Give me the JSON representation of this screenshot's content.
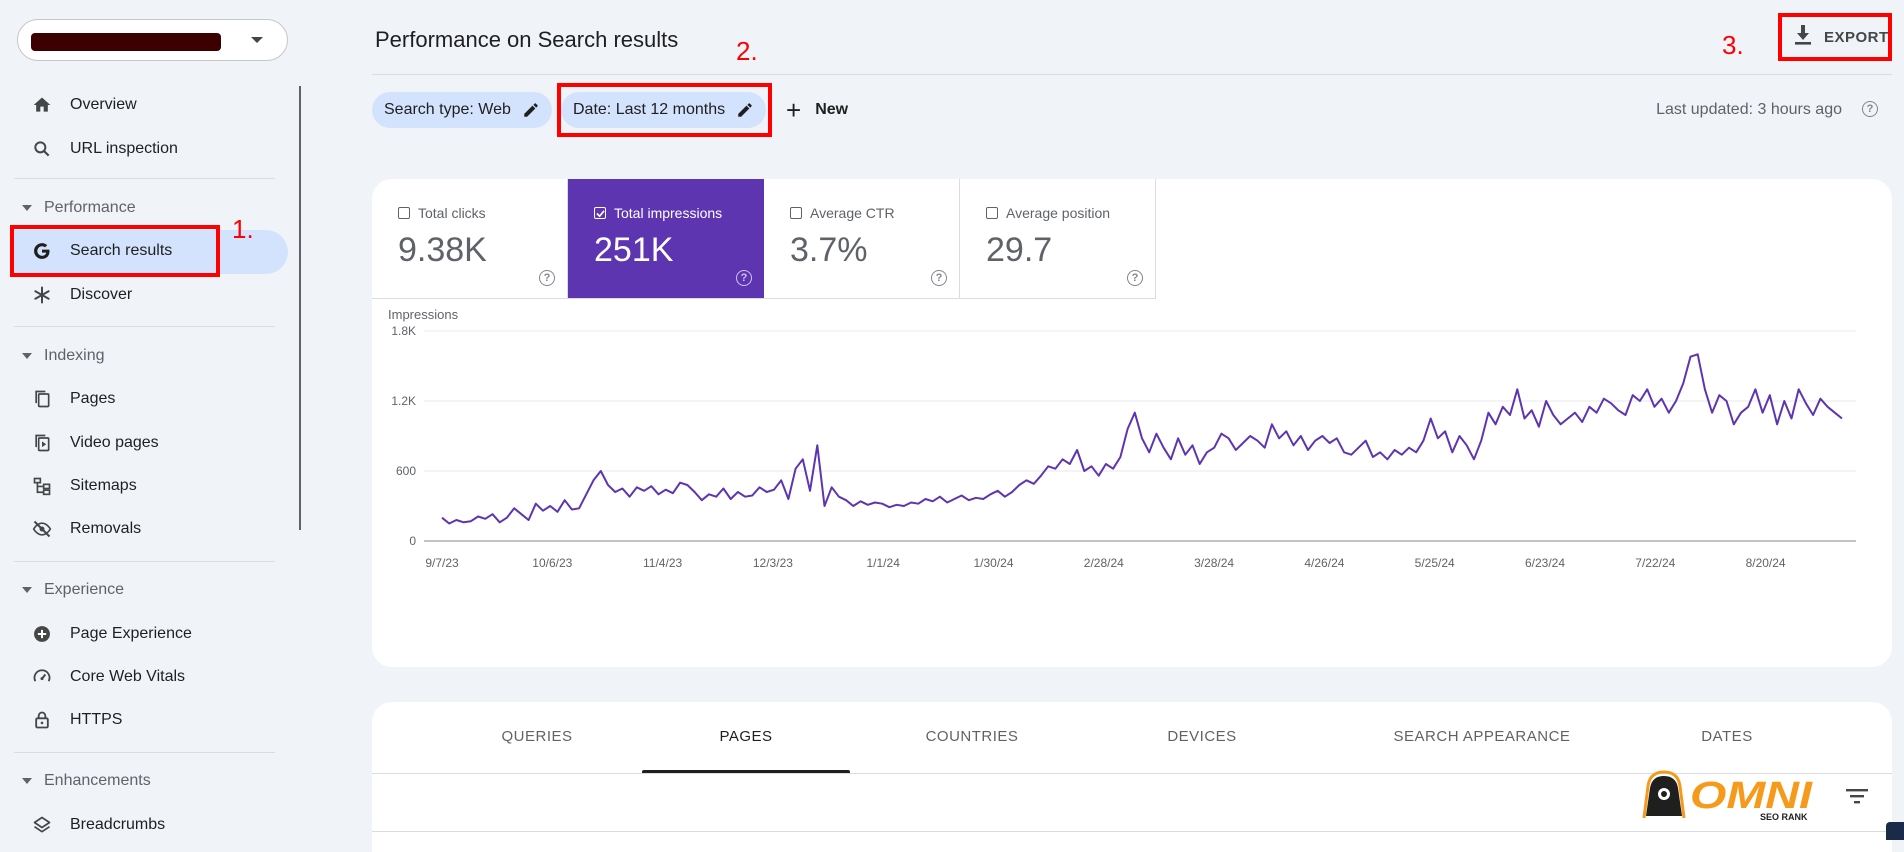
{
  "sidebar": {
    "items": {
      "overview": "Overview",
      "url_inspection": "URL inspection",
      "search_results": "Search results",
      "discover": "Discover",
      "pages": "Pages",
      "video_pages": "Video pages",
      "sitemaps": "Sitemaps",
      "removals": "Removals",
      "page_experience": "Page Experience",
      "core_web_vitals": "Core Web Vitals",
      "https": "HTTPS",
      "breadcrumbs": "Breadcrumbs"
    },
    "sections": {
      "performance": "Performance",
      "indexing": "Indexing",
      "experience": "Experience",
      "enhancements": "Enhancements"
    }
  },
  "annotations": {
    "n1": "1.",
    "n2": "2.",
    "n3": "3."
  },
  "header": {
    "title": "Performance on Search results",
    "export_label": "EXPORT",
    "last_updated": "Last updated: 3 hours ago"
  },
  "filters": {
    "search_type": "Search type: Web",
    "date": "Date: Last 12 months",
    "new_label": "New"
  },
  "metrics": [
    {
      "label": "Total clicks",
      "value": "9.38K",
      "checked": false
    },
    {
      "label": "Total impressions",
      "value": "251K",
      "checked": true
    },
    {
      "label": "Average CTR",
      "value": "3.7%",
      "checked": false
    },
    {
      "label": "Average position",
      "value": "29.7",
      "checked": false
    }
  ],
  "chart_data": {
    "type": "line",
    "ylabel": "Impressions",
    "ylim": [
      0,
      1800
    ],
    "yticks": [
      "0",
      "600",
      "1.2K",
      "1.8K"
    ],
    "x_tick_labels": [
      "9/7/23",
      "10/6/23",
      "11/4/23",
      "12/3/23",
      "1/1/24",
      "1/30/24",
      "2/28/24",
      "3/28/24",
      "4/26/24",
      "5/25/24",
      "6/23/24",
      "7/22/24",
      "8/20/24"
    ],
    "color": "#5e35b1",
    "grid": true,
    "series": [
      {
        "values": [
          200,
          150,
          180,
          160,
          170,
          210,
          190,
          230,
          160,
          200,
          280,
          230,
          180,
          320,
          260,
          300,
          250,
          350,
          270,
          280,
          400,
          520,
          600,
          480,
          420,
          450,
          380,
          460,
          430,
          470,
          400,
          440,
          410,
          500,
          480,
          420,
          350,
          400,
          380,
          450,
          360,
          420,
          380,
          390,
          460,
          420,
          440,
          520,
          360,
          620,
          700,
          430,
          820,
          300,
          460,
          380,
          350,
          300,
          340,
          310,
          330,
          320,
          290,
          310,
          300,
          330,
          320,
          360,
          340,
          380,
          330,
          360,
          390,
          350,
          370,
          360,
          400,
          430,
          380,
          420,
          480,
          520,
          490,
          560,
          640,
          620,
          700,
          660,
          780,
          600,
          640,
          560,
          660,
          620,
          720,
          960,
          1100,
          880,
          760,
          920,
          800,
          700,
          880,
          740,
          820,
          660,
          760,
          800,
          920,
          880,
          780,
          840,
          900,
          860,
          800,
          1000,
          880,
          940,
          820,
          900,
          780,
          860,
          900,
          840,
          880,
          760,
          740,
          800,
          860,
          720,
          760,
          700,
          780,
          740,
          800,
          760,
          860,
          1050,
          880,
          940,
          760,
          900,
          820,
          700,
          860,
          1100,
          1000,
          1150,
          1080,
          1300,
          1050,
          1120,
          980,
          1200,
          1080,
          1000,
          1050,
          1100,
          1020,
          1150,
          1100,
          1220,
          1180,
          1120,
          1080,
          1250,
          1200,
          1300,
          1150,
          1220,
          1100,
          1200,
          1350,
          1580,
          1600,
          1300,
          1100,
          1250,
          1200,
          1000,
          1100,
          1150,
          1300,
          1100,
          1250,
          1000,
          1200,
          1050,
          1300,
          1180,
          1080,
          1220,
          1150,
          1100,
          1050
        ]
      }
    ]
  },
  "tabs": [
    "QUERIES",
    "PAGES",
    "COUNTRIES",
    "DEVICES",
    "SEARCH APPEARANCE",
    "DATES"
  ],
  "brand": {
    "name": "OMNI",
    "tagline": "SEO RANK"
  }
}
